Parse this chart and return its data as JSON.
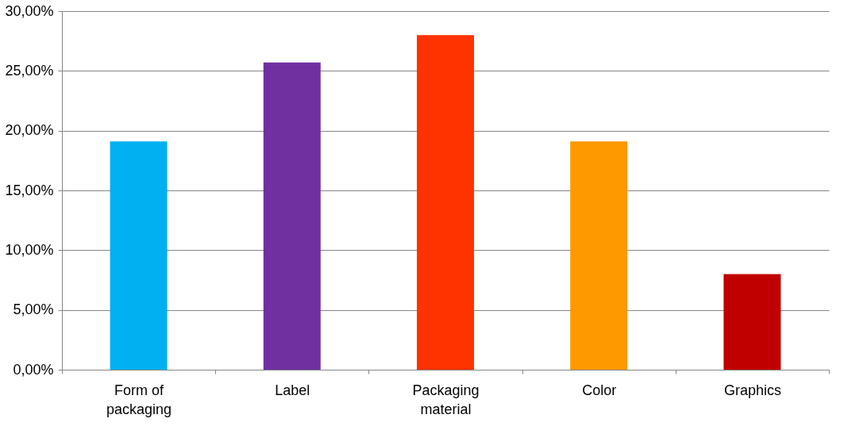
{
  "chart_data": {
    "type": "bar",
    "categories": [
      "Form of packaging",
      "Label",
      "Packaging material",
      "Color",
      "Graphics"
    ],
    "values": [
      19.1,
      25.7,
      28.0,
      19.1,
      8.0
    ],
    "colors": [
      "#00b0f0",
      "#7030a0",
      "#ff3300",
      "#ff9900",
      "#c00000"
    ],
    "ylim": [
      0,
      30
    ],
    "yticks": [
      {
        "value": 0,
        "label": "0,00%"
      },
      {
        "value": 5,
        "label": "5,00%"
      },
      {
        "value": 10,
        "label": "10,00%"
      },
      {
        "value": 15,
        "label": "15,00%"
      },
      {
        "value": 20,
        "label": "20,00%"
      },
      {
        "value": 25,
        "label": "25,00%"
      },
      {
        "value": 30,
        "label": "30,00%"
      }
    ],
    "grid": "y"
  }
}
